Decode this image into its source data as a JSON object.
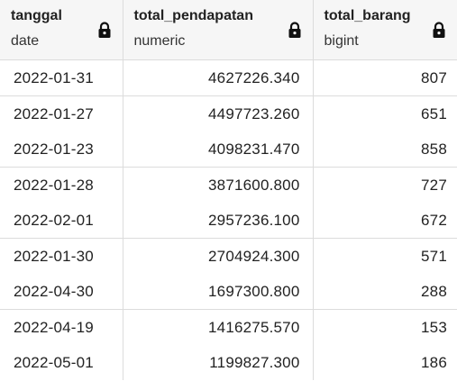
{
  "columns": [
    {
      "name": "tanggal",
      "type": "date",
      "icon": "lock-icon"
    },
    {
      "name": "total_pendapatan",
      "type": "numeric",
      "icon": "lock-icon"
    },
    {
      "name": "total_barang",
      "type": "bigint",
      "icon": "lock-icon"
    }
  ],
  "rows": [
    {
      "tanggal": "2022-01-31",
      "total_pendapatan": "4627226.340",
      "total_barang": "807"
    },
    {
      "tanggal": "2022-01-27",
      "total_pendapatan": "4497723.260",
      "total_barang": "651"
    },
    {
      "tanggal": "2022-01-23",
      "total_pendapatan": "4098231.470",
      "total_barang": "858"
    },
    {
      "tanggal": "2022-01-28",
      "total_pendapatan": "3871600.800",
      "total_barang": "727"
    },
    {
      "tanggal": "2022-02-01",
      "total_pendapatan": "2957236.100",
      "total_barang": "672"
    },
    {
      "tanggal": "2022-01-30",
      "total_pendapatan": "2704924.300",
      "total_barang": "571"
    },
    {
      "tanggal": "2022-04-30",
      "total_pendapatan": "1697300.800",
      "total_barang": "288"
    },
    {
      "tanggal": "2022-04-19",
      "total_pendapatan": "1416275.570",
      "total_barang": "153"
    },
    {
      "tanggal": "2022-05-01",
      "total_pendapatan": "1199827.300",
      "total_barang": "186"
    }
  ],
  "colors": {
    "header_bg": "#f6f6f6",
    "grid_line": "#dcdcdc",
    "text": "#222222"
  }
}
